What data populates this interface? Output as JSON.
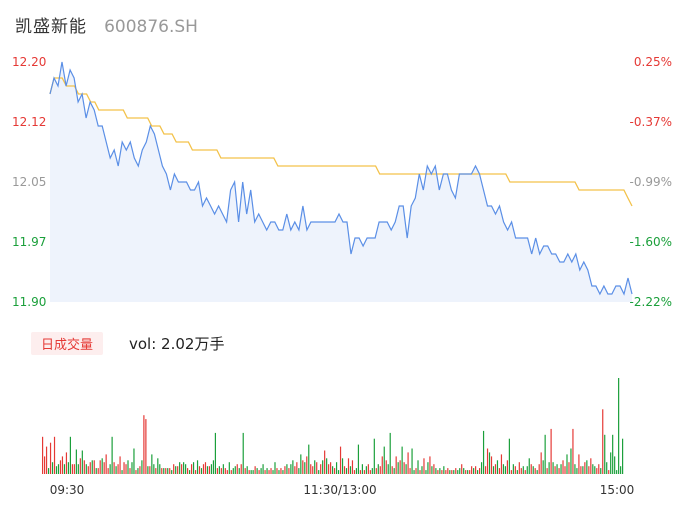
{
  "header": {
    "name": "凯盛新能",
    "code": "600876.SH"
  },
  "colors": {
    "up": "#e53935",
    "down": "#1a9f3a",
    "neutral": "#999999",
    "price_line": "#5b8fe6",
    "avg_line": "#f3c24a",
    "area_fill": "#eef3fc"
  },
  "chart_data": [
    {
      "type": "line",
      "title": "",
      "y_ticks": [
        "12.20",
        "12.12",
        "12.05",
        "11.97",
        "11.90"
      ],
      "pct_ticks": [
        "0.25%",
        "-0.37%",
        "-0.99%",
        "-1.60%",
        "-2.22%"
      ],
      "x_ticks": [
        "09:30",
        "11:30/13:00",
        "15:00"
      ],
      "ylim": [
        11.9,
        12.2
      ],
      "series": [
        {
          "values": [
            12.16,
            12.18,
            12.17,
            12.2,
            12.17,
            12.19,
            12.18,
            12.15,
            12.16,
            12.13,
            12.15,
            12.14,
            12.12,
            12.12,
            12.1,
            12.08,
            12.09,
            12.07,
            12.1,
            12.09,
            12.1,
            12.08,
            12.07,
            12.09,
            12.1,
            12.12,
            12.11,
            12.09,
            12.07,
            12.06,
            12.04,
            12.06,
            12.05,
            12.05,
            12.05,
            12.04,
            12.04,
            12.05,
            12.02,
            12.03,
            12.02,
            12.01,
            12.02,
            12.01,
            12.0,
            12.04,
            12.05,
            12.0,
            12.05,
            12.01,
            12.04,
            12.0,
            12.01,
            12.0,
            11.99,
            12.0,
            12.0,
            11.99,
            11.99,
            12.01,
            11.99,
            12.0,
            11.99,
            12.02,
            11.99,
            12.0,
            12.0,
            12.0,
            12.0,
            12.0,
            12.0,
            12.0,
            12.01,
            12.0,
            12.0,
            11.96,
            11.98,
            11.98,
            11.97,
            11.98,
            11.98,
            11.98,
            12.0,
            12.0,
            12.0,
            11.99,
            12.0,
            12.02,
            12.02,
            11.98,
            12.02,
            12.03,
            12.06,
            12.04,
            12.07,
            12.06,
            12.07,
            12.04,
            12.06,
            12.06,
            12.04,
            12.03,
            12.06,
            12.06,
            12.06,
            12.06,
            12.07,
            12.06,
            12.04,
            12.02,
            12.02,
            12.01,
            12.02,
            12.0,
            11.99,
            12.0,
            11.98,
            11.98,
            11.98,
            11.98,
            11.96,
            11.98,
            11.96,
            11.97,
            11.97,
            11.96,
            11.96,
            11.95,
            11.95,
            11.96,
            11.95,
            11.96,
            11.94,
            11.95,
            11.94,
            11.92,
            11.92,
            11.91,
            11.92,
            11.91,
            11.91,
            11.92,
            11.92,
            11.91,
            11.93,
            11.91
          ],
          "close": 11.91
        },
        {
          "values": [
            12.16,
            12.18,
            12.18,
            12.18,
            12.17,
            12.17,
            12.17,
            12.16,
            12.16,
            12.16,
            12.15,
            12.15,
            12.14,
            12.14,
            12.14,
            12.14,
            12.14,
            12.14,
            12.14,
            12.13,
            12.13,
            12.13,
            12.13,
            12.13,
            12.13,
            12.12,
            12.12,
            12.12,
            12.11,
            12.11,
            12.11,
            12.1,
            12.1,
            12.1,
            12.1,
            12.09,
            12.09,
            12.09,
            12.09,
            12.09,
            12.09,
            12.09,
            12.08,
            12.08,
            12.08,
            12.08,
            12.08,
            12.08,
            12.08,
            12.08,
            12.08,
            12.08,
            12.08,
            12.08,
            12.08,
            12.08,
            12.07,
            12.07,
            12.07,
            12.07,
            12.07,
            12.07,
            12.07,
            12.07,
            12.07,
            12.07,
            12.07,
            12.07,
            12.07,
            12.07,
            12.07,
            12.07,
            12.07,
            12.07,
            12.07,
            12.07,
            12.07,
            12.07,
            12.07,
            12.07,
            12.07,
            12.06,
            12.06,
            12.06,
            12.06,
            12.06,
            12.06,
            12.06,
            12.06,
            12.06,
            12.06,
            12.06,
            12.06,
            12.06,
            12.06,
            12.06,
            12.06,
            12.06,
            12.06,
            12.06,
            12.06,
            12.06,
            12.06,
            12.06,
            12.06,
            12.06,
            12.06,
            12.06,
            12.06,
            12.06,
            12.06,
            12.06,
            12.06,
            12.05,
            12.05,
            12.05,
            12.05,
            12.05,
            12.05,
            12.05,
            12.05,
            12.05,
            12.05,
            12.05,
            12.05,
            12.05,
            12.05,
            12.05,
            12.05,
            12.05,
            12.04,
            12.04,
            12.04,
            12.04,
            12.04,
            12.04,
            12.04,
            12.04,
            12.04,
            12.04,
            12.04,
            12.04,
            12.03,
            12.02
          ]
        }
      ]
    },
    {
      "type": "bar",
      "title": "",
      "legend_tag": "日成交量",
      "vol_label": "vol: 2.02万手",
      "values": [
        38,
        18,
        28,
        6,
        32,
        12,
        38,
        8,
        10,
        14,
        18,
        10,
        22,
        12,
        38,
        10,
        10,
        25,
        10,
        16,
        24,
        14,
        10,
        8,
        12,
        14,
        14,
        6,
        6,
        14,
        16,
        12,
        20,
        6,
        10,
        38,
        12,
        8,
        10,
        18,
        4,
        12,
        10,
        14,
        6,
        12,
        26,
        4,
        6,
        8,
        14,
        60,
        56,
        8,
        8,
        20,
        10,
        6,
        16,
        10,
        6,
        6,
        6,
        6,
        6,
        4,
        10,
        8,
        8,
        12,
        10,
        12,
        10,
        6,
        4,
        10,
        12,
        4,
        14,
        8,
        6,
        10,
        12,
        8,
        8,
        10,
        14,
        42,
        6,
        8,
        6,
        10,
        6,
        4,
        12,
        4,
        6,
        8,
        10,
        6,
        10,
        42,
        6,
        8,
        4,
        4,
        4,
        8,
        6,
        4,
        6,
        10,
        4,
        6,
        4,
        6,
        4,
        12,
        6,
        4,
        6,
        4,
        8,
        10,
        6,
        10,
        14,
        8,
        12,
        6,
        20,
        14,
        12,
        18,
        30,
        10,
        8,
        14,
        12,
        4,
        10,
        14,
        24,
        16,
        10,
        12,
        8,
        6,
        12,
        4,
        28,
        16,
        8,
        6,
        16,
        8,
        14,
        4,
        6,
        30,
        4,
        10,
        4,
        8,
        10,
        4,
        6,
        36,
        6,
        10,
        8,
        18,
        28,
        14,
        10,
        42,
        8,
        6,
        18,
        12,
        14,
        28,
        12,
        10,
        22,
        6,
        26,
        4,
        6,
        14,
        4,
        8,
        16,
        4,
        12,
        18,
        8,
        10,
        6,
        4,
        6,
        4,
        8,
        4,
        6,
        4,
        4,
        4,
        6,
        4,
        6,
        10,
        6,
        4,
        4,
        4,
        8,
        6,
        8,
        4,
        6,
        12,
        44,
        8,
        26,
        22,
        18,
        8,
        10,
        14,
        6,
        20,
        10,
        8,
        14,
        36,
        4,
        10,
        8,
        4,
        12,
        6,
        8,
        4,
        8,
        16,
        10,
        8,
        6,
        4,
        10,
        22,
        14,
        40,
        6,
        12,
        46,
        12,
        8,
        10,
        6,
        10,
        14,
        8,
        20,
        12,
        26,
        46,
        10,
        6,
        20,
        8,
        8,
        12,
        14,
        8,
        16,
        10,
        8,
        6,
        10,
        6,
        66,
        40,
        12,
        4,
        22,
        40,
        18,
        4,
        98,
        8,
        36
      ],
      "ups": [
        1,
        1,
        1,
        0,
        1,
        0,
        1,
        0,
        0,
        1,
        1,
        0,
        1,
        0,
        0,
        1,
        1,
        0,
        0,
        1,
        0,
        1,
        0,
        1,
        1,
        0,
        1,
        0,
        1,
        1,
        0,
        1,
        1,
        1,
        0,
        0,
        1,
        0,
        1,
        1,
        0,
        1,
        1,
        0,
        1,
        0,
        0,
        1,
        0,
        1,
        0,
        1,
        1,
        0,
        1,
        0,
        0,
        1,
        0,
        0,
        1,
        0,
        1,
        0,
        1,
        0,
        1,
        0,
        1,
        0,
        1,
        0,
        0,
        1,
        0,
        1,
        0,
        1,
        0,
        1,
        0,
        1,
        1,
        0,
        1,
        0,
        0,
        0,
        1,
        0,
        1,
        0,
        1,
        1,
        0,
        1,
        0,
        0,
        1,
        0,
        1,
        0,
        1,
        0,
        1,
        0,
        0,
        1,
        0,
        1,
        0,
        0,
        1,
        0,
        1,
        1,
        0,
        0,
        1,
        0,
        1,
        0,
        1,
        0,
        1,
        0,
        0,
        1,
        1,
        0,
        0,
        1,
        0,
        1,
        0,
        1,
        1,
        0,
        1,
        0,
        1,
        0,
        1,
        0,
        1,
        1,
        0,
        1,
        0,
        0,
        1,
        0,
        1,
        0,
        1,
        0,
        1,
        1,
        0,
        0,
        1,
        0,
        1,
        0,
        1,
        1,
        0,
        0,
        1,
        0,
        1,
        1,
        0,
        1,
        0,
        0,
        1,
        0,
        1,
        0,
        1,
        0,
        1,
        0,
        1,
        1,
        0,
        0,
        1,
        0,
        1,
        0,
        1,
        0,
        0,
        1,
        0,
        1,
        0,
        1,
        0,
        1,
        0,
        1,
        1,
        0,
        1,
        0,
        1,
        0,
        0,
        1,
        0,
        1,
        0,
        1,
        1,
        0,
        1,
        0,
        1,
        0,
        0,
        1,
        1,
        0,
        1,
        0,
        1,
        0,
        1,
        1,
        0,
        0,
        1,
        0,
        1,
        0,
        1,
        0,
        1,
        1,
        0,
        1,
        0,
        0,
        1,
        0,
        1,
        0,
        1,
        1,
        0,
        0,
        1,
        0,
        1,
        0,
        1,
        0,
        1,
        0,
        1,
        1,
        0,
        1,
        0,
        1,
        0,
        0,
        1,
        1,
        0,
        1,
        0,
        1,
        1,
        0,
        0,
        1,
        1,
        0,
        1,
        0,
        0,
        1,
        0
      ]
    }
  ]
}
